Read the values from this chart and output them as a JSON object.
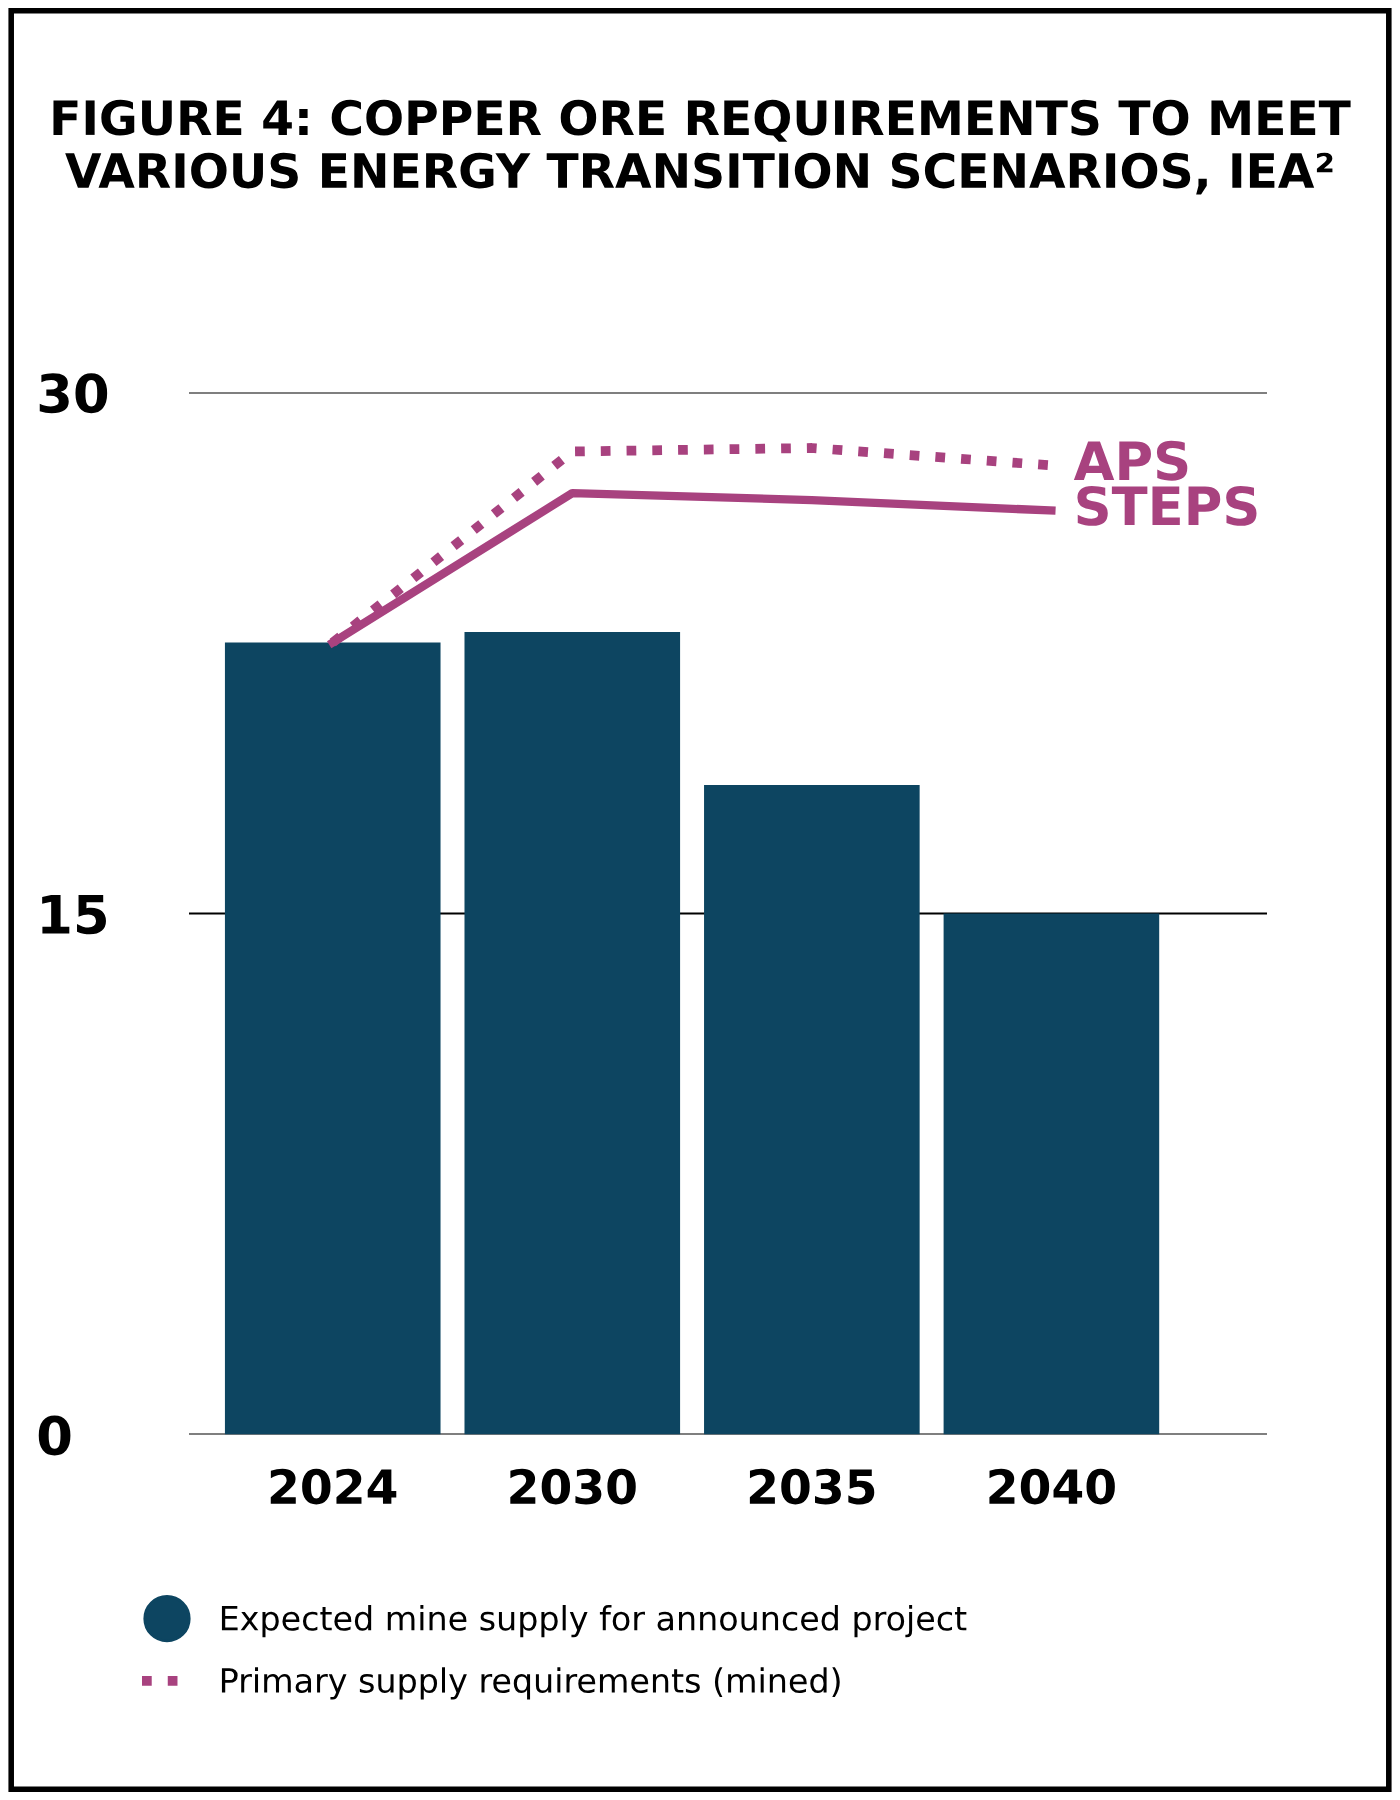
{
  "chart_data": {
    "type": "bar",
    "title": "FIGURE 4: COPPER ORE REQUIREMENTS TO MEET VARIOUS ENERGY TRANSITION SCENARIOS, IEA²",
    "categories": [
      "2024",
      "2030",
      "2035",
      "2040"
    ],
    "series": [
      {
        "name": "Expected mine supply for announced project",
        "color": "#0d4561",
        "values": [
          22.8,
          23.1,
          18.7,
          15.0
        ]
      },
      {
        "name": "APS",
        "type": "line",
        "line_style": "dotted",
        "color": "#a8427f",
        "values": [
          22.8,
          28.3,
          28.4,
          27.9
        ]
      },
      {
        "name": "STEPS",
        "type": "line",
        "line_style": "solid",
        "color": "#a8427f",
        "values": [
          22.8,
          27.1,
          26.9,
          26.6
        ]
      }
    ],
    "annotations": [
      "Primary supply requirements (mined)"
    ],
    "ylim": [
      0,
      30
    ],
    "yticks": [
      0,
      15,
      30
    ],
    "grid": "y",
    "legend": "bottom"
  }
}
